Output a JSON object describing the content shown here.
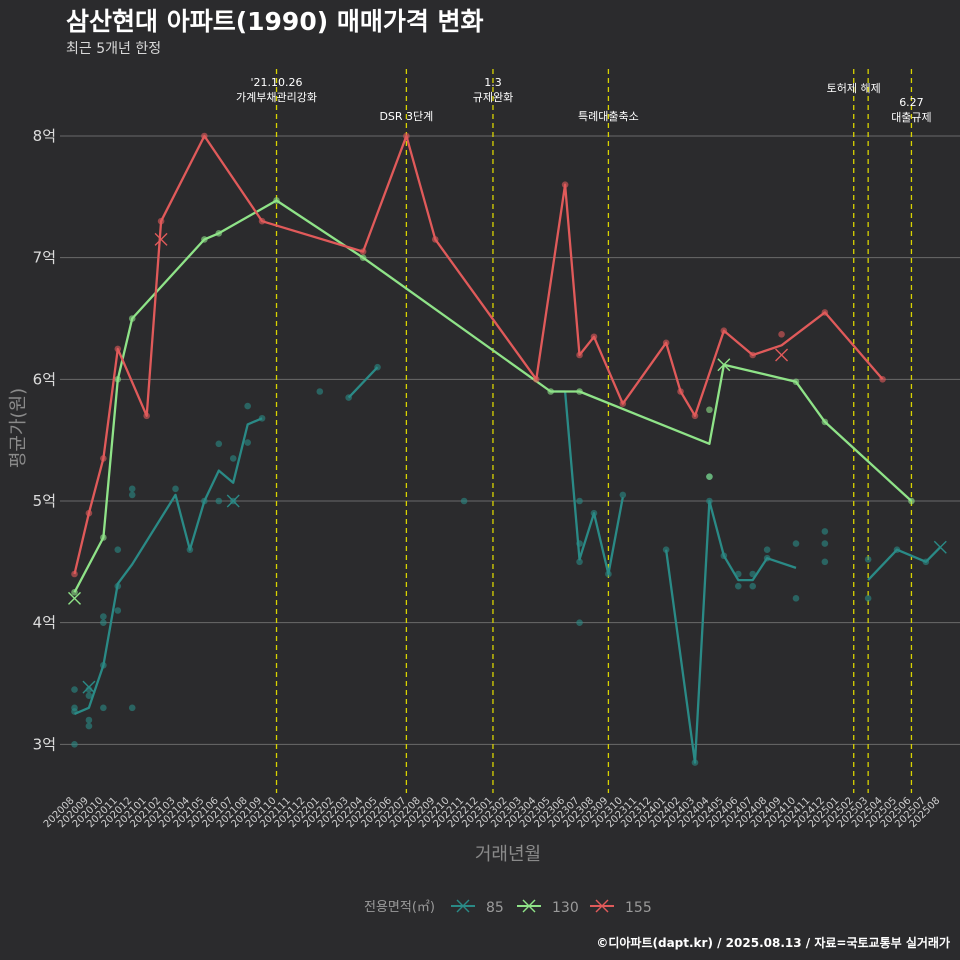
{
  "title": "삼산현대 아파트(1990) 매매가격 변화",
  "subtitle": "최근 5개년 한정",
  "credit": "©디아파트(dapt.kr) / 2025.08.13 / 자료=국토교통부 실거래가",
  "chart_data": {
    "type": "line",
    "xlabel": "거래년월",
    "ylabel": "평균가(원)",
    "ylim": [
      2.6,
      8.6
    ],
    "yticks": [
      3,
      4,
      5,
      6,
      7,
      8
    ],
    "ytick_labels": [
      "3억",
      "4억",
      "5억",
      "6억",
      "7억",
      "8억"
    ],
    "categories": [
      "202008",
      "202009",
      "202010",
      "202011",
      "202012",
      "202101",
      "202102",
      "202103",
      "202104",
      "202105",
      "202106",
      "202107",
      "202108",
      "202109",
      "202110",
      "202111",
      "202112",
      "202201",
      "202202",
      "202203",
      "202204",
      "202205",
      "202206",
      "202207",
      "202208",
      "202209",
      "202210",
      "202211",
      "202212",
      "202301",
      "202302",
      "202303",
      "202304",
      "202305",
      "202306",
      "202307",
      "202308",
      "202309",
      "202310",
      "202311",
      "202312",
      "202401",
      "202402",
      "202403",
      "202404",
      "202405",
      "202406",
      "202407",
      "202408",
      "202409",
      "202410",
      "202411",
      "202412",
      "202501",
      "202502",
      "202503",
      "202504",
      "202505",
      "202506",
      "202507",
      "202508"
    ],
    "grid": true,
    "legend": {
      "title": "전용면적(㎡)",
      "position": "bottom"
    },
    "events": [
      {
        "x": 14,
        "label": "'21.10.26\n가계부채관리강화",
        "row": 0
      },
      {
        "x": 23,
        "label": "DSR 3단계",
        "row": 1
      },
      {
        "x": 29,
        "label": "1.3\n규제완화",
        "row": 0
      },
      {
        "x": 37,
        "label": "특례대출축소",
        "row": 1
      },
      {
        "x": 54,
        "label": "토허제 해제",
        "row": 0
      },
      {
        "x": 55,
        "label": "",
        "row": 0
      },
      {
        "x": 58,
        "label": "6.27\n대출규제",
        "row": 2
      }
    ],
    "series": [
      {
        "name": "85",
        "color": "#2a8a86",
        "segments": [
          [
            [
              0,
              3.25
            ],
            [
              1,
              3.3
            ],
            [
              2,
              3.65
            ],
            [
              3,
              4.32
            ],
            [
              4,
              4.48
            ],
            [
              7,
              5.05
            ],
            [
              8,
              4.6
            ],
            [
              9,
              5.0
            ],
            [
              10,
              5.25
            ],
            [
              11,
              5.15
            ],
            [
              12,
              5.63
            ],
            [
              13,
              5.68
            ]
          ],
          [
            [
              19,
              5.85
            ],
            [
              21,
              6.1
            ]
          ],
          [
            [
              33,
              5.9
            ],
            [
              34,
              5.9
            ],
            [
              35,
              4.52
            ],
            [
              36,
              4.9
            ],
            [
              37,
              4.4
            ],
            [
              38,
              5.03
            ]
          ],
          [
            [
              41,
              4.6
            ],
            [
              43,
              2.85
            ],
            [
              44,
              5.0
            ],
            [
              45,
              4.55
            ],
            [
              46,
              4.35
            ],
            [
              47,
              4.35
            ],
            [
              48,
              4.53
            ],
            [
              50,
              4.45
            ]
          ],
          [
            [
              55,
              4.35
            ],
            [
              57,
              4.6
            ],
            [
              59,
              4.5
            ],
            [
              60,
              4.62
            ]
          ]
        ],
        "points": [
          [
            0,
            3.45
          ],
          [
            0,
            3.3
          ],
          [
            0,
            3.27
          ],
          [
            0,
            3.0
          ],
          [
            1,
            3.45
          ],
          [
            1,
            3.4
          ],
          [
            1,
            3.2
          ],
          [
            1,
            3.15
          ],
          [
            2,
            4.05
          ],
          [
            2,
            4.0
          ],
          [
            2,
            3.65
          ],
          [
            2,
            3.3
          ],
          [
            3,
            4.6
          ],
          [
            3,
            4.3
          ],
          [
            3,
            4.1
          ],
          [
            4,
            5.1
          ],
          [
            4,
            5.05
          ],
          [
            4,
            3.3
          ],
          [
            7,
            5.1
          ],
          [
            8,
            4.6
          ],
          [
            9,
            5.0
          ],
          [
            10,
            5.47
          ],
          [
            10,
            5.0
          ],
          [
            11,
            5.35
          ],
          [
            11,
            5.0
          ],
          [
            12,
            5.78
          ],
          [
            12,
            5.48
          ],
          [
            13,
            5.68
          ],
          [
            17,
            5.9
          ],
          [
            19,
            5.85
          ],
          [
            21,
            6.1
          ],
          [
            27,
            5.0
          ],
          [
            35,
            5.0
          ],
          [
            35,
            4.65
          ],
          [
            35,
            4.5
          ],
          [
            35,
            4.0
          ],
          [
            36,
            4.9
          ],
          [
            37,
            4.4
          ],
          [
            38,
            5.05
          ],
          [
            41,
            4.6
          ],
          [
            43,
            2.85
          ],
          [
            44,
            5.2
          ],
          [
            44,
            5.0
          ],
          [
            45,
            4.55
          ],
          [
            46,
            4.4
          ],
          [
            46,
            4.3
          ],
          [
            47,
            4.4
          ],
          [
            47,
            4.3
          ],
          [
            48,
            4.6
          ],
          [
            48,
            4.53
          ],
          [
            50,
            4.65
          ],
          [
            50,
            4.2
          ],
          [
            52,
            4.75
          ],
          [
            52,
            4.65
          ],
          [
            52,
            4.5
          ],
          [
            55,
            4.52
          ],
          [
            55,
            4.2
          ],
          [
            57,
            4.6
          ],
          [
            59,
            4.5
          ]
        ],
        "crosses": [
          [
            1,
            3.47
          ],
          [
            11,
            5.0
          ],
          [
            60,
            4.62
          ]
        ]
      },
      {
        "name": "130",
        "color": "#8fe388",
        "segments": [
          [
            [
              0,
              4.25
            ],
            [
              2,
              4.7
            ],
            [
              3,
              6.0
            ],
            [
              4,
              6.5
            ],
            [
              9,
              7.15
            ],
            [
              10,
              7.2
            ],
            [
              14,
              7.47
            ],
            [
              20,
              7.0
            ],
            [
              33,
              5.9
            ],
            [
              35,
              5.9
            ],
            [
              44,
              5.47
            ],
            [
              45,
              6.12
            ],
            [
              50,
              5.98
            ],
            [
              52,
              5.65
            ],
            [
              58,
              5.0
            ]
          ]
        ],
        "points": [
          [
            0,
            4.25
          ],
          [
            2,
            4.7
          ],
          [
            3,
            6.0
          ],
          [
            4,
            6.5
          ],
          [
            9,
            7.15
          ],
          [
            10,
            7.2
          ],
          [
            14,
            7.47
          ],
          [
            20,
            7.0
          ],
          [
            33,
            5.9
          ],
          [
            35,
            5.9
          ],
          [
            44,
            5.75
          ],
          [
            44,
            5.2
          ],
          [
            50,
            5.98
          ],
          [
            52,
            5.65
          ],
          [
            58,
            5.0
          ]
        ],
        "crosses": [
          [
            0,
            4.2
          ],
          [
            45,
            6.12
          ]
        ]
      },
      {
        "name": "155",
        "color": "#e05a5a",
        "segments": [
          [
            [
              0,
              4.4
            ],
            [
              1,
              4.9
            ],
            [
              2,
              5.35
            ],
            [
              3,
              6.25
            ],
            [
              5,
              5.7
            ],
            [
              6,
              7.3
            ],
            [
              9,
              8.0
            ],
            [
              13,
              7.3
            ],
            [
              20,
              7.05
            ],
            [
              23,
              8.0
            ],
            [
              25,
              7.15
            ],
            [
              32,
              6.0
            ],
            [
              34,
              7.6
            ],
            [
              35,
              6.2
            ],
            [
              36,
              6.35
            ],
            [
              38,
              5.8
            ],
            [
              41,
              6.3
            ],
            [
              42,
              5.9
            ],
            [
              43,
              5.7
            ],
            [
              45,
              6.4
            ],
            [
              47,
              6.2
            ],
            [
              49,
              6.28
            ],
            [
              52,
              6.55
            ],
            [
              56,
              6.0
            ]
          ]
        ],
        "points": [
          [
            0,
            4.4
          ],
          [
            1,
            4.9
          ],
          [
            2,
            5.35
          ],
          [
            3,
            6.25
          ],
          [
            5,
            5.7
          ],
          [
            6,
            7.3
          ],
          [
            9,
            8.0
          ],
          [
            13,
            7.3
          ],
          [
            20,
            7.05
          ],
          [
            23,
            8.0
          ],
          [
            25,
            7.15
          ],
          [
            32,
            6.0
          ],
          [
            34,
            7.6
          ],
          [
            35,
            6.2
          ],
          [
            36,
            6.35
          ],
          [
            38,
            5.8
          ],
          [
            41,
            6.3
          ],
          [
            42,
            5.9
          ],
          [
            43,
            5.7
          ],
          [
            45,
            6.4
          ],
          [
            47,
            6.2
          ],
          [
            49,
            6.37
          ],
          [
            52,
            6.55
          ],
          [
            56,
            6.0
          ]
        ],
        "crosses": [
          [
            6,
            7.15
          ],
          [
            49,
            6.2
          ]
        ]
      }
    ]
  }
}
